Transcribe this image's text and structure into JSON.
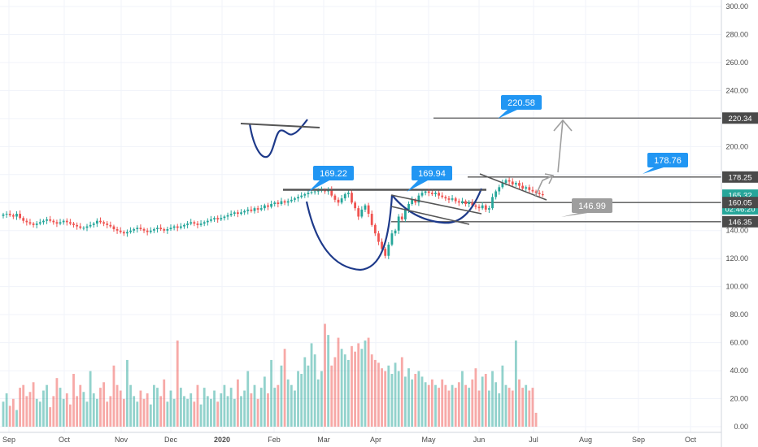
{
  "chart_data": {
    "type": "candlestick",
    "price_axis": {
      "ylim": [
        0,
        300
      ],
      "ticks": [
        "300.00",
        "280.00",
        "260.00",
        "240.00",
        "220.00",
        "200.00",
        "180.00",
        "160.00",
        "140.00",
        "120.00",
        "100.00",
        "80.00",
        "60.00",
        "40.00",
        "20.00",
        "0.00"
      ]
    },
    "time_axis": {
      "labels": [
        "Sep",
        "Oct",
        "Nov",
        "Dec",
        "2020",
        "Feb",
        "Mar",
        "Apr",
        "May",
        "Jun",
        "Jul",
        "Aug",
        "Sep",
        "Oct"
      ]
    },
    "price_tags": [
      {
        "label": "220.34",
        "value": 220.34,
        "color": "#4a4a4a"
      },
      {
        "label": "178.25",
        "value": 178.25,
        "color": "#4a4a4a"
      },
      {
        "label": "165.32",
        "value": 165.32,
        "color": "#26a69a"
      },
      {
        "label": "02:46:20",
        "value": 155.5,
        "color": "#26a69a"
      },
      {
        "label": "160.05",
        "value": 160.05,
        "color": "#4a4a4a"
      },
      {
        "label": "146.35",
        "value": 146.35,
        "color": "#4a4a4a"
      }
    ],
    "callouts": [
      {
        "label": "220.58",
        "value": 220.58,
        "color": "#2196f3"
      },
      {
        "label": "178.76",
        "value": 178.76,
        "color": "#2196f3"
      },
      {
        "label": "169.22",
        "value": 169.22,
        "color": "#2196f3"
      },
      {
        "label": "169.94",
        "value": 169.94,
        "color": "#2196f3"
      },
      {
        "label": "146.99",
        "value": 146.99,
        "color": "#9e9e9e"
      }
    ],
    "horizontal_levels": [
      220.34,
      178.25,
      169.5,
      160.05,
      146.35
    ],
    "colors": {
      "up": "#26a69a",
      "down": "#ef5350",
      "drawing": "#1e3a8a",
      "arrow": "#9e9e9e",
      "grid": "#f0f3fa"
    },
    "ohlc_close": [
      151.5,
      152,
      151,
      150,
      152,
      149,
      147,
      146,
      145,
      144,
      145,
      146,
      147,
      148,
      147,
      146,
      145,
      146,
      147,
      146,
      145,
      144,
      143,
      142,
      142,
      143,
      144,
      145,
      147,
      146,
      145,
      144,
      143,
      141,
      140,
      139,
      138,
      139,
      140,
      141,
      142,
      141,
      140,
      139,
      140,
      141,
      142,
      141,
      140,
      141,
      142,
      143,
      142,
      143,
      144,
      145,
      146,
      145,
      144,
      145,
      146,
      147,
      148,
      149,
      148,
      149,
      150,
      151,
      152,
      153,
      152,
      153,
      154,
      155,
      154,
      156,
      155,
      156,
      158,
      157,
      159,
      160,
      159,
      161,
      160,
      161,
      162,
      163,
      164,
      165,
      166,
      167,
      167.5,
      168,
      168.5,
      169,
      168,
      169.2,
      165,
      162,
      160,
      163,
      166,
      167,
      160,
      156,
      150,
      155,
      158,
      152,
      144,
      138,
      132,
      127,
      122,
      130,
      138,
      140,
      150,
      148,
      155,
      159,
      162,
      160,
      165,
      167,
      168,
      167,
      166,
      167,
      165,
      164,
      163,
      162,
      163,
      161,
      160,
      161,
      159,
      160,
      158,
      157,
      156,
      158,
      155,
      156,
      164,
      168,
      171,
      174,
      176,
      175,
      173,
      174,
      172,
      170,
      171,
      169,
      168,
      167,
      166,
      165.3
    ],
    "volume": [
      18,
      24,
      15,
      20,
      12,
      28,
      30,
      22,
      25,
      32,
      20,
      18,
      26,
      30,
      14,
      22,
      35,
      28,
      20,
      24,
      16,
      38,
      22,
      30,
      25,
      18,
      40,
      24,
      20,
      28,
      32,
      18,
      22,
      44,
      30,
      26,
      20,
      48,
      30,
      22,
      18,
      26,
      20,
      24,
      16,
      30,
      28,
      22,
      34,
      18,
      26,
      20,
      62,
      28,
      22,
      20,
      24,
      18,
      30,
      16,
      28,
      22,
      20,
      26,
      18,
      24,
      30,
      22,
      28,
      20,
      34,
      22,
      26,
      40,
      24,
      30,
      20,
      28,
      36,
      24,
      48,
      28,
      30,
      44,
      56,
      34,
      30,
      26,
      40,
      38,
      50,
      44,
      60,
      52,
      34,
      40,
      74,
      66,
      44,
      50,
      64,
      56,
      52,
      48,
      58,
      54,
      60,
      56,
      62,
      64,
      52,
      48,
      46,
      42,
      40,
      44,
      38,
      46,
      40,
      50,
      36,
      42,
      34,
      38,
      40,
      36,
      32,
      30,
      34,
      30,
      28,
      34,
      30,
      26,
      30,
      28,
      32,
      40,
      30,
      28,
      34,
      42,
      26,
      36,
      38,
      26,
      40,
      32,
      24,
      44,
      30,
      28,
      26,
      62,
      34,
      28,
      30,
      26,
      28,
      10
    ],
    "volume_ylim": [
      0,
      100
    ],
    "volume_ticks": [
      "80.00",
      "60.00",
      "40.00",
      "20.00",
      "0.00"
    ],
    "current_price": 165.32
  }
}
